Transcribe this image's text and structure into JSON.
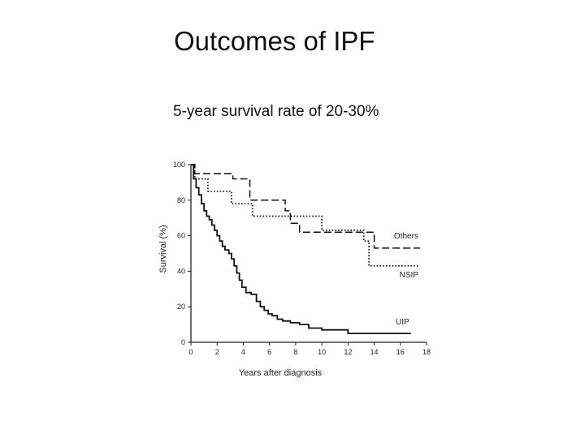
{
  "slide": {
    "title": "Outcomes of IPF",
    "subtitle": "5-year survival rate of 20-30%"
  },
  "chart_data": {
    "type": "line",
    "title": "",
    "xlabel": "Years after diagnosis",
    "ylabel": "Survival (%)",
    "xlim": [
      0,
      18
    ],
    "ylim": [
      0,
      100
    ],
    "xticks": [
      0,
      2,
      4,
      6,
      8,
      10,
      12,
      14,
      16,
      18
    ],
    "yticks": [
      0,
      20,
      40,
      60,
      80,
      100
    ],
    "grid": false,
    "step": true,
    "series": [
      {
        "name": "Others",
        "style": "dashed",
        "x": [
          0,
          0.3,
          3.2,
          4.5,
          7.2,
          7.6,
          8.3,
          14.0,
          14.0,
          17.5
        ],
        "y": [
          100,
          95,
          92,
          80,
          74,
          67,
          62,
          62,
          53,
          53
        ]
      },
      {
        "name": "NSIP",
        "style": "dotted",
        "x": [
          0,
          0.3,
          1.3,
          3.1,
          4.7,
          7.2,
          10.0,
          12.5,
          13.2,
          13.6,
          17.5
        ],
        "y": [
          100,
          92,
          85,
          78,
          71,
          71,
          63,
          63,
          57,
          43,
          43
        ]
      },
      {
        "name": "UIP",
        "style": "solid",
        "x": [
          0,
          0.2,
          0.4,
          0.6,
          0.8,
          1.0,
          1.2,
          1.4,
          1.6,
          1.8,
          2.0,
          2.2,
          2.4,
          2.6,
          2.9,
          3.1,
          3.3,
          3.5,
          3.7,
          3.9,
          4.2,
          4.6,
          5.0,
          5.3,
          5.6,
          5.9,
          6.2,
          6.6,
          7.0,
          7.6,
          8.3,
          9.0,
          10.0,
          12.0,
          16.8
        ],
        "y": [
          100,
          92,
          87,
          83,
          78,
          74,
          71,
          69,
          66,
          63,
          60,
          57,
          54,
          52,
          50,
          47,
          43,
          39,
          35,
          31,
          28,
          27,
          23,
          20,
          18,
          16,
          15,
          13,
          12,
          11,
          10,
          8,
          7,
          5,
          5
        ]
      }
    ]
  }
}
